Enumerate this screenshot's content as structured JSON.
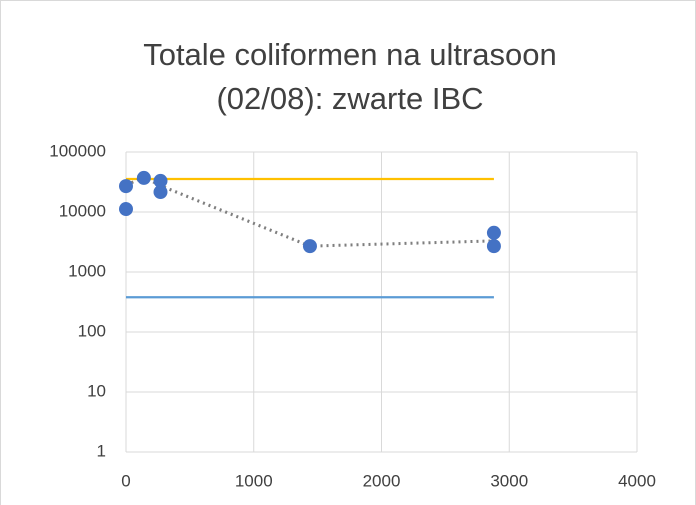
{
  "chart_data": {
    "type": "scatter",
    "title": [
      "Totale coliformen na ultrasoon",
      "(02/08): zwarte IBC"
    ],
    "xlim": [
      0,
      4000
    ],
    "xticks": [
      0,
      1000,
      2000,
      3000,
      4000
    ],
    "ylim": [
      1,
      100000
    ],
    "yticks": [
      1,
      10,
      100,
      1000,
      10000,
      100000
    ],
    "log_y": true,
    "grid": true,
    "series": [
      {
        "mode": "line",
        "color": "#ffc000",
        "x": [
          0,
          2880
        ],
        "values": [
          35500,
          35500
        ]
      },
      {
        "mode": "line",
        "color": "#5b9bd5",
        "x": [
          0,
          2880
        ],
        "values": [
          380,
          380
        ]
      },
      {
        "mode": "dotted",
        "color": "#7f7f7f",
        "x": [
          0,
          140,
          270,
          1440,
          2880
        ],
        "values": [
          28000,
          38000,
          27500,
          2700,
          3300
        ]
      },
      {
        "mode": "markers",
        "color": "#4472c4",
        "x": [
          0,
          0,
          140,
          270,
          270,
          1440,
          2880,
          2880
        ],
        "values": [
          27000,
          11200,
          37000,
          33000,
          21500,
          2700,
          4500,
          2700
        ]
      }
    ]
  }
}
